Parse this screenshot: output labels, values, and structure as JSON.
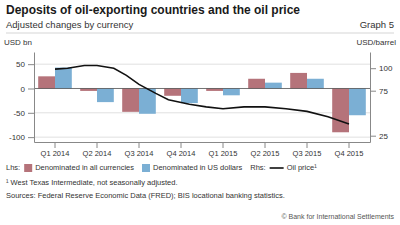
{
  "chart_data": {
    "type": "bar",
    "title": "Deposits of oil-exporting countries and the oil price",
    "subtitle": "Adjusted changes by currency",
    "ylabel": "USD bn",
    "y2label": "USD/barrel",
    "annotations": [
      "Graph 5",
      "Lhs:",
      "Rhs:",
      "¹ West Texas Intermediate, not seasonally adjusted.",
      "Sources: Federal Reserve Economic Data (FRED); BIS locational banking statistics.",
      "© Bank for International Settlements"
    ],
    "categories": [
      "Q1 2014",
      "Q2 2014",
      "Q3 2014",
      "Q4 2014",
      "Q1 2015",
      "Q2 2015",
      "Q3 2015",
      "Q4 2015"
    ],
    "series": [
      {
        "name": "Denominated in all currencies",
        "type": "bar",
        "color": "#b5737a",
        "values": [
          25,
          -5,
          -48,
          -15,
          -5,
          20,
          32,
          -90
        ]
      },
      {
        "name": "Denominated in US dollars",
        "type": "bar",
        "color": "#7bafd4",
        "values": [
          43,
          -28,
          -52,
          -30,
          -14,
          12,
          20,
          -55
        ]
      },
      {
        "name": "Oil price¹",
        "type": "line",
        "axis": "y2",
        "color": "#111111",
        "x": [
          0,
          0.3,
          0.7,
          1.0,
          1.4,
          1.7,
          2.0,
          2.4,
          2.7,
          3.2,
          3.6,
          4.0,
          4.5,
          5.0,
          5.5,
          6.0,
          6.5,
          7.0
        ],
        "values": [
          99,
          100,
          103,
          103,
          100,
          92,
          82,
          72,
          65,
          60,
          57,
          55,
          57,
          57,
          55,
          52,
          46,
          38
        ]
      }
    ],
    "ylim": [
      -110,
      75
    ],
    "yticks": [
      -100,
      -50,
      0,
      50
    ],
    "y2lim": [
      18,
      118
    ],
    "y2ticks": [
      25,
      75,
      100
    ],
    "grid": true,
    "legend": "bottom"
  }
}
